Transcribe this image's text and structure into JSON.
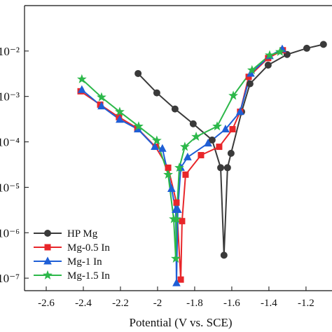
{
  "chart_data": {
    "type": "line",
    "x_label": "Potential (V vs. SCE)",
    "log_y": true,
    "xlim": [
      -2.717,
      -1.06
    ],
    "ylim": [
      5.3e-08,
      0.1
    ],
    "xticks": [
      -2.6,
      -2.4,
      -2.2,
      -2.0,
      -1.8,
      -1.6,
      -1.4,
      -1.2
    ],
    "yticks": [
      {
        "value": 1e-07,
        "label": "10⁻⁷"
      },
      {
        "value": 1e-06,
        "label": "10⁻⁶"
      },
      {
        "value": 1e-05,
        "label": "10⁻⁵"
      },
      {
        "value": 0.0001,
        "label": "10⁻⁴"
      },
      {
        "value": 0.001,
        "label": "10⁻³"
      },
      {
        "value": 0.01,
        "label": "10⁻²"
      }
    ],
    "legend": "lower left",
    "series": [
      {
        "name": "HP Mg",
        "color": "#3a3a3a",
        "marker": "circle",
        "x": [
          -2.105,
          -2.004,
          -1.906,
          -1.808,
          -1.706,
          -1.66,
          -1.642,
          -1.623,
          -1.604,
          -1.547,
          -1.502,
          -1.404,
          -1.302,
          -1.196,
          -1.106
        ],
        "values": [
          0.0032,
          0.0012,
          0.00053,
          0.00025,
          0.00011,
          2.7e-05,
          3.2e-07,
          2.7e-05,
          5.6e-05,
          0.00046,
          0.0019,
          0.0049,
          0.0084,
          0.0115,
          0.014
        ]
      },
      {
        "name": "Mg-0.5 In",
        "color": "#e8262a",
        "marker": "square",
        "x": [
          -2.415,
          -2.309,
          -2.208,
          -2.109,
          -2.011,
          -1.943,
          -1.898,
          -1.875,
          -1.868,
          -1.849,
          -1.766,
          -1.668,
          -1.596,
          -1.555,
          -1.509,
          -1.404,
          -1.325
        ],
        "values": [
          0.0013,
          0.00066,
          0.00035,
          0.0002,
          7.8e-05,
          2.7e-05,
          4.6e-06,
          9.3e-08,
          1.8e-06,
          1.9e-05,
          5.1e-05,
          7.8e-05,
          0.00019,
          0.00046,
          0.0027,
          0.007,
          0.0104
        ]
      },
      {
        "name": "Mg-1 In",
        "color": "#1f5fd6",
        "marker": "triangle",
        "x": [
          -2.408,
          -2.302,
          -2.204,
          -2.106,
          -2.015,
          -1.974,
          -1.925,
          -1.902,
          -1.898,
          -1.891,
          -1.875,
          -1.838,
          -1.728,
          -1.634,
          -1.555,
          -1.498,
          -1.396,
          -1.328
        ],
        "values": [
          0.0014,
          0.00061,
          0.00031,
          0.00019,
          7.8e-05,
          7.1e-05,
          9.3e-06,
          3.2e-06,
          7.8e-08,
          3.2e-06,
          2.7e-05,
          4.6e-05,
          9.3e-05,
          0.00019,
          0.00046,
          0.0032,
          0.0078,
          0.011
        ]
      },
      {
        "name": "Mg-1.5 In",
        "color": "#2db84a",
        "marker": "star",
        "x": [
          -2.408,
          -2.302,
          -2.204,
          -2.102,
          -2.004,
          -1.943,
          -1.913,
          -1.902,
          -1.898,
          -1.883,
          -1.853,
          -1.792,
          -1.679,
          -1.592,
          -1.491,
          -1.396,
          -1.34
        ],
        "values": [
          0.0024,
          0.00096,
          0.00046,
          0.00022,
          0.000107,
          1.9e-05,
          2e-06,
          2.7e-07,
          2e-06,
          2.7e-05,
          7.8e-05,
          0.00013,
          0.00022,
          0.00104,
          0.0038,
          0.0081,
          0.0096
        ]
      }
    ]
  }
}
